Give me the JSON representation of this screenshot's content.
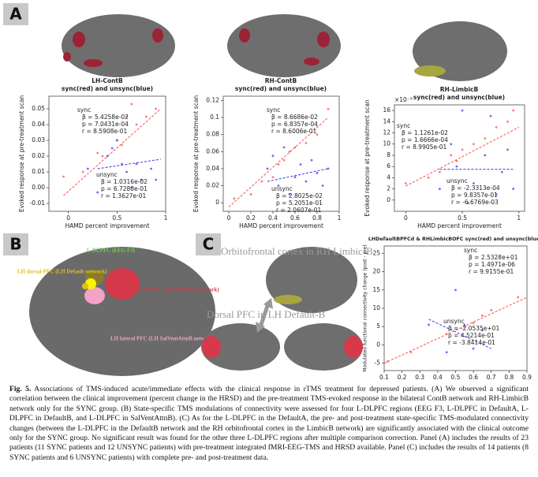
{
  "panels": [
    "A",
    "B",
    "C"
  ],
  "charts": [
    {
      "type": "scatter",
      "title": "LH-ContB",
      "subtitle": "sync(red) and unsync(blue)",
      "xlabel": "HAMD percent improvement",
      "ylabel": "Evoked response at pre-treatment scan",
      "xlim": [
        -0.2,
        1.0
      ],
      "ylim": [
        -0.015,
        0.058
      ],
      "xticks": [
        0,
        0.5,
        1
      ],
      "yticks": [
        -0.01,
        {
          "value": 0,
          "label": "0.00"
        },
        0.01,
        0.02,
        0.03,
        0.04,
        0.05
      ],
      "series": [
        {
          "name": "sync",
          "color": "#ff5a5a",
          "stats": [
            "β = 5.4258e-02",
            "p = 7.0431e-04",
            "r = 8.5908e-01"
          ],
          "x": [
            -0.05,
            0.15,
            0.3,
            0.35,
            0.5,
            0.55,
            0.6,
            0.65,
            0.7,
            0.8,
            0.9
          ],
          "y": [
            0.007,
            0.01,
            0.022,
            0.02,
            0.03,
            0.027,
            0.045,
            0.053,
            0.04,
            0.045,
            0.05
          ],
          "fit_x": [
            -0.05,
            0.95
          ],
          "fit_y": [
            -0.005,
            0.05
          ]
        },
        {
          "name": "unsync",
          "color": "#4a4ae6",
          "stats": [
            "β = 1.0316e-02",
            "p = 6.7280e-01",
            "r = 1.3627e-01"
          ],
          "x": [
            0.2,
            0.3,
            0.4,
            0.45,
            0.5,
            0.55,
            0.6,
            0.65,
            0.7,
            0.75,
            0.85,
            0.9
          ],
          "y": [
            0.012,
            -0.003,
            0.02,
            0.025,
            0.03,
            0.015,
            0.01,
            0.0,
            0.015,
            0.005,
            0.012,
            0.005
          ],
          "fit_x": [
            0.3,
            0.95
          ],
          "fit_y": [
            0.012,
            0.018
          ]
        }
      ]
    },
    {
      "type": "scatter",
      "title": "RH-ContB",
      "subtitle": "sync(red) and unsync(blue)",
      "xlabel": "HAMD percent improvement",
      "ylabel": "Evoked response at pre-treatment scan",
      "xlim": [
        -0.05,
        1.0
      ],
      "ylim": [
        -0.01,
        0.125
      ],
      "xticks": [
        0,
        0.2,
        0.4,
        0.6,
        0.8,
        1
      ],
      "yticks": [
        0,
        0.02,
        0.04,
        0.06,
        0.08,
        0.1,
        0.12
      ],
      "series": [
        {
          "name": "sync",
          "color": "#ff5a5a",
          "stats": [
            "β = 8.6686e-02",
            "p = 6.8357e-04",
            "r = 8.6006e-01"
          ],
          "x": [
            0.05,
            0.2,
            0.3,
            0.4,
            0.45,
            0.5,
            0.55,
            0.6,
            0.7,
            0.8,
            0.9
          ],
          "y": [
            0.005,
            0.01,
            0.025,
            0.03,
            0.045,
            0.05,
            0.06,
            0.065,
            0.07,
            0.08,
            0.11
          ],
          "fit_x": [
            0.0,
            0.9
          ],
          "fit_y": [
            -0.005,
            0.1
          ]
        },
        {
          "name": "unsync",
          "color": "#4a4ae6",
          "stats": [
            "β = 2.8025e-02",
            "p = 5.2051e-01",
            "r = 2.0607e-01"
          ],
          "x": [
            0.35,
            0.4,
            0.45,
            0.5,
            0.55,
            0.6,
            0.65,
            0.7,
            0.75,
            0.8,
            0.85,
            0.9
          ],
          "y": [
            0.04,
            0.055,
            0.02,
            0.065,
            0.01,
            0.03,
            0.045,
            0.025,
            0.05,
            0.035,
            0.02,
            0.04
          ],
          "fit_x": [
            0.35,
            0.9
          ],
          "fit_y": [
            0.025,
            0.04
          ]
        }
      ]
    },
    {
      "type": "scatter",
      "title": "RH-LimbicB",
      "subtitle": "sync(red) and unsync(blue)",
      "xlabel": "HAMD percent improvement",
      "ylabel": "Evoked response at pre-treatment scan",
      "multiplier": "×10⁻³",
      "xlim": [
        -0.1,
        1.05
      ],
      "ylim": [
        -2,
        17
      ],
      "xticks": [
        0,
        0.5,
        1
      ],
      "yticks": [
        0,
        2,
        4,
        6,
        8,
        10,
        12,
        14,
        16
      ],
      "series": [
        {
          "name": "sync",
          "color": "#ff5a5a",
          "stats": [
            "β = 1.1261e-02",
            "p = 1.6666e-04",
            "r = 8.9905e-01"
          ],
          "x": [
            0.0,
            0.2,
            0.3,
            0.4,
            0.45,
            0.5,
            0.6,
            0.7,
            0.8,
            0.9,
            0.95
          ],
          "y": [
            3,
            4,
            5,
            8,
            7,
            9,
            10,
            11,
            13,
            14,
            16
          ],
          "fit_x": [
            0.0,
            1.0
          ],
          "fit_y": [
            2.5,
            13
          ]
        },
        {
          "name": "unsync",
          "color": "#4a4ae6",
          "stats": [
            "β = -2.3313e-04",
            "p = 9.8357e-01",
            "r = -6.6769e-03"
          ],
          "x": [
            0.3,
            0.4,
            0.45,
            0.5,
            0.55,
            0.6,
            0.7,
            0.75,
            0.8,
            0.85,
            0.9,
            0.95
          ],
          "y": [
            2,
            10,
            6,
            16,
            -0.5,
            3,
            8,
            15,
            1,
            5,
            9,
            2
          ],
          "fit_x": [
            0.3,
            0.95
          ],
          "fit_y": [
            5.5,
            5.5
          ]
        }
      ]
    },
    {
      "type": "scatter",
      "title": "LHDefaultBPFCd & RHLimbicBOFC sync(red) and unsync(blue)",
      "xlabel": "HAMD percent improvement",
      "ylabel": "Modulated functional connectivity change (post - pre)",
      "xlim": [
        0.1,
        0.9
      ],
      "ylim": [
        -7,
        27
      ],
      "xticks": [
        0.1,
        0.2,
        0.3,
        0.4,
        0.5,
        0.6,
        0.7,
        0.8,
        0.9
      ],
      "yticks": [
        -5,
        0,
        5,
        10,
        15,
        20,
        25
      ],
      "series": [
        {
          "name": "sync",
          "color": "#ff5a5a",
          "stats": [
            "β = 2.5328e+01",
            "p = 1.4971e-06",
            "r = 9.9155e-01"
          ],
          "x": [
            0.12,
            0.25,
            0.45,
            0.55,
            0.6,
            0.65,
            0.7,
            0.85
          ],
          "y": [
            -4.5,
            -2,
            3,
            5,
            6,
            8,
            9.5,
            13
          ],
          "fit_x": [
            0.1,
            0.9
          ],
          "fit_y": [
            -5,
            13
          ]
        },
        {
          "name": "unsync",
          "color": "#4a4ae6",
          "stats": [
            "β = -2.0535e+01",
            "p = 4.5214e-01",
            "r = -3.8414e-01"
          ],
          "x": [
            0.35,
            0.45,
            0.5,
            0.55,
            0.6,
            0.65
          ],
          "y": [
            5.5,
            -2,
            15,
            5.5,
            -1,
            4
          ],
          "fit_x": [
            0.35,
            0.7
          ],
          "fit_y": [
            7,
            -1
          ]
        }
      ]
    }
  ],
  "panel_b_labels": [
    "L-DLPFC (EEG F3)",
    "LH dorsal-PFC (LH Default network)",
    "LH lateral-PFC (LH-DefaultB network)",
    "LH lateral PFC (LH SalVentAttnB network)"
  ],
  "panel_c_labels": [
    "Orbitofrontal cortex in RH Limbic-B",
    "Dorsal PFC in LH Default-B"
  ],
  "caption": {
    "label": "Fig. 5.",
    "text": "Associations of TMS-induced acute/immediate effects with the clinical response in rTMS treatment for depressed patients. (A) We observed a significant correlation between the clinical improvement (percent change in the HRSD) and the pre-treatment TMS-evoked response in the bilateral ContB network and RH-LimbicB network only for the SYNC group. (B) State-specific TMS modulations of connectivity were assessed for four L-DLPFC regions (EEG F3, L-DLPFC in DefaultA, L-DLPFC in DefaultB, and L-DLPFC in SalVentAttnB). (C) As for the L-DLPFC in the DefaultA, the pre- and post-treatment state-specific TMS-modulated connectivity changes (between the L-DLPFC in the DefaultB network and the RH orbitofrontal cortex in the LimbicB network) are significantly associated with the clinical outcome only for the SYNC group. No significant result was found for the other three L-DLPFC regions after multiple comparison correction. Panel (A) includes the results of 23 patients (11 SYNC patients and 12 UNSYNC patients) with pre-treatment integrated fMRI-EEG-TMS and HRSD available. Panel (C) includes the results of 14 patients (8 SYNC patients and 6 UNSYNC patients) with complete pre- and post-treatment data."
  }
}
